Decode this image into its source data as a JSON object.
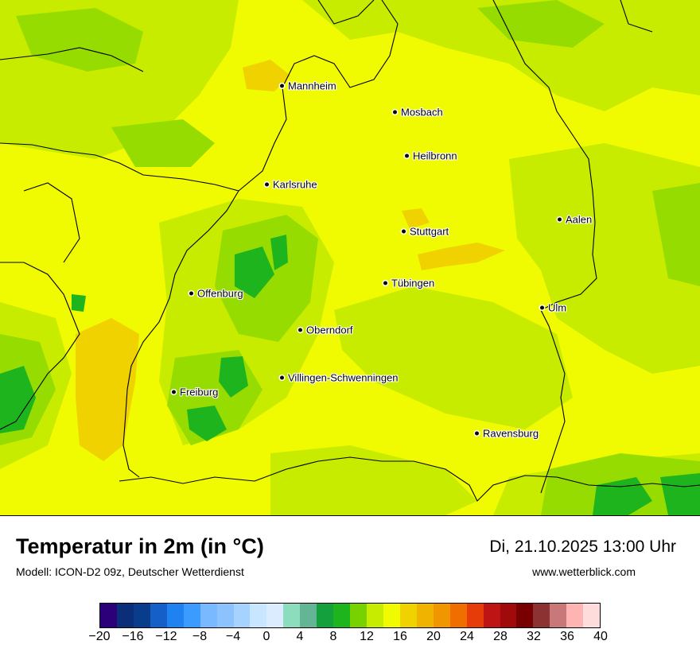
{
  "map": {
    "cities": [
      {
        "name": "Mannheim"
      },
      {
        "name": "Mosbach"
      },
      {
        "name": "Heilbronn"
      },
      {
        "name": "Karlsruhe"
      },
      {
        "name": "Aalen"
      },
      {
        "name": "Stuttgart"
      },
      {
        "name": "Tübingen"
      },
      {
        "name": "Offenburg"
      },
      {
        "name": "Ulm"
      },
      {
        "name": "Oberndorf"
      },
      {
        "name": "Villingen-Schwenningen"
      },
      {
        "name": "Freiburg"
      },
      {
        "name": "Ravensburg"
      }
    ],
    "colors": {
      "dominant": "#f0fa00",
      "warm_orange": "#f0d200",
      "light_green": "#c8ec00",
      "mid_green": "#96dc00",
      "dark_green": "#1eb41e",
      "border": "#000000"
    }
  },
  "header": {
    "title": "Temperatur in 2m (in °C)",
    "subtitle": "Modell: ICON-D2 09z, Deutscher Wetterdienst",
    "datetime": "Di, 21.10.2025 13:00 Uhr",
    "source": "www.wetterblick.com"
  },
  "legend": {
    "unit": "°C",
    "range": [
      -20,
      40
    ],
    "step": 2,
    "colors": [
      "#2c0078",
      "#0a2f78",
      "#0a3c8c",
      "#1460c8",
      "#1e82f0",
      "#3c9bff",
      "#78b9ff",
      "#8cc3ff",
      "#a5d2ff",
      "#c8e6ff",
      "#dcecff",
      "#8cdcbe",
      "#64b496",
      "#14a03c",
      "#1eb41e",
      "#78d200",
      "#c8ec00",
      "#f0fa00",
      "#f0d200",
      "#f0b400",
      "#f09600",
      "#f06e00",
      "#e63c0a",
      "#be1414",
      "#a00a0a",
      "#780000",
      "#8c3232",
      "#c87878",
      "#ffb4b4",
      "#ffdcdc"
    ],
    "tick_labels": [
      "−20",
      "−16",
      "−12",
      "−8",
      "−4",
      "0",
      "4",
      "8",
      "12",
      "16",
      "20",
      "24",
      "28",
      "32",
      "36",
      "40"
    ]
  }
}
